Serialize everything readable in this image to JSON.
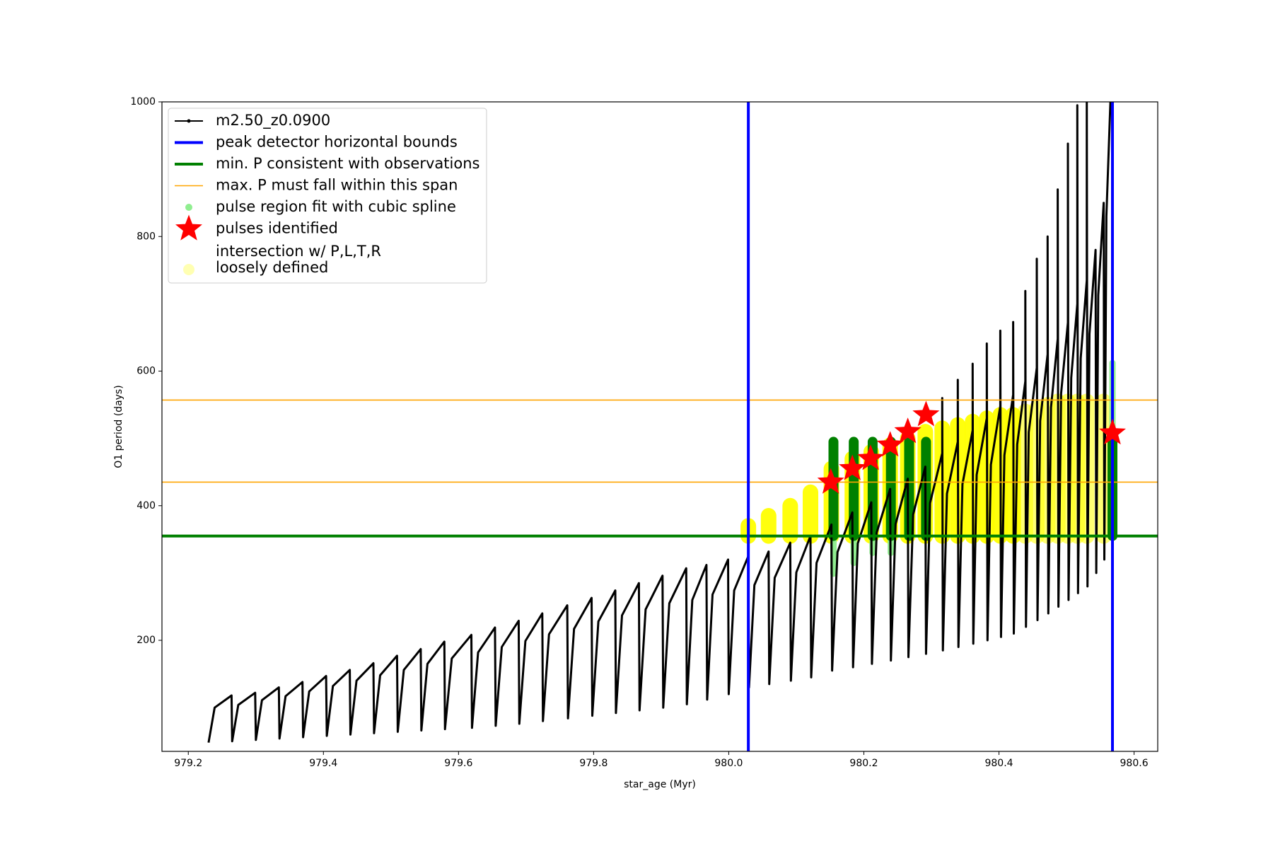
{
  "chart_data": {
    "type": "line",
    "xlabel": "star_age (Myr)",
    "ylabel": "O1 period (days)",
    "xlim": [
      979.161,
      980.635
    ],
    "ylim": [
      35,
      1000
    ],
    "xticks": [
      979.2,
      979.4,
      979.6,
      979.8,
      {
        "value": 980,
        "label": "980.0"
      },
      980.2,
      980.4,
      980.6
    ],
    "yticks": [
      200,
      400,
      600,
      800,
      1000
    ],
    "legend": "upper left",
    "series": [
      {
        "name": "m2.50_z0.0900",
        "type": "line",
        "color": "#000000",
        "x": [
          979.23,
          979.239,
          979.264,
          979.265,
          979.274,
          979.299,
          979.3,
          979.309,
          979.334,
          979.335,
          979.344,
          979.369,
          979.37,
          979.379,
          979.404,
          979.405,
          979.414,
          979.439,
          979.44,
          979.449,
          979.474,
          979.475,
          979.484,
          979.509,
          979.51,
          979.519,
          979.544,
          979.545,
          979.554,
          979.579,
          979.58,
          979.59,
          979.619,
          979.62,
          979.629,
          979.654,
          979.655,
          979.664,
          979.689,
          979.69,
          979.699,
          979.724,
          979.725,
          979.734,
          979.761,
          979.762,
          979.771,
          979.797,
          979.798,
          979.807,
          979.832,
          979.833,
          979.842,
          979.867,
          979.868,
          979.877,
          979.902,
          979.903,
          979.912,
          979.937,
          979.938,
          979.946,
          979.967,
          979.968,
          979.976,
          979.999,
          980.0,
          980.008,
          980.029,
          980.03,
          980.038,
          980.059,
          980.06,
          980.068,
          980.091,
          980.092,
          980.1,
          980.121,
          980.122,
          980.13,
          980.152,
          980.153,
          980.161,
          980.183,
          980.184,
          980.191,
          980.211,
          980.212,
          980.219,
          980.239,
          980.24,
          980.247,
          980.265,
          980.266,
          980.273,
          980.291,
          980.292,
          980.298,
          980.316,
          980.316,
          980.317,
          980.323,
          980.339,
          980.339,
          980.34,
          980.346,
          980.361,
          980.361,
          980.362,
          980.367,
          980.382,
          980.382,
          980.383,
          980.388,
          980.402,
          980.402,
          980.403,
          980.408,
          980.421,
          980.421,
          980.422,
          980.427,
          980.439,
          980.439,
          980.44,
          980.444,
          980.456,
          980.456,
          980.457,
          980.461,
          980.472,
          980.472,
          980.473,
          980.477,
          980.487,
          980.487,
          980.488,
          980.492,
          980.502,
          980.502,
          980.503,
          980.507,
          980.516,
          980.516,
          980.517,
          980.521,
          980.53,
          980.53,
          980.531,
          980.534,
          980.543,
          980.544,
          980.547,
          980.555,
          980.556,
          980.559,
          980.565
        ],
        "y": [
          48,
          100,
          118,
          50,
          104,
          122,
          52,
          111,
          130,
          54,
          117,
          138,
          56,
          124,
          147,
          58,
          132,
          156,
          60,
          140,
          166,
          62,
          148,
          177,
          64,
          156,
          187,
          66,
          165,
          198,
          68,
          173,
          208,
          70,
          182,
          219,
          73,
          190,
          229,
          76,
          199,
          240,
          80,
          209,
          252,
          84,
          217,
          263,
          88,
          228,
          274,
          92,
          237,
          285,
          96,
          246,
          296,
          100,
          255,
          307,
          105,
          260,
          312,
          112,
          268,
          320,
          120,
          274,
          325,
          130,
          282,
          332,
          135,
          293,
          345,
          140,
          301,
          355,
          145,
          315,
          372,
          155,
          331,
          390,
          160,
          344,
          405,
          165,
          360,
          425,
          170,
          373,
          440,
          175,
          387,
          458,
          180,
          404,
          478,
          560,
          185,
          418,
          495,
          587,
          190,
          432,
          512,
          611,
          195,
          446,
          530,
          641,
          200,
          461,
          548,
          660,
          205,
          475,
          565,
          673,
          210,
          491,
          585,
          719,
          220,
          509,
          605,
          767,
          230,
          526,
          625,
          800,
          240,
          546,
          648,
          870,
          250,
          567,
          672,
          938,
          260,
          590,
          700,
          995,
          270,
          619,
          735,
          1000,
          280,
          655,
          780,
          300,
          713,
          850,
          320,
          830,
          1000
        ]
      },
      {
        "name": "peak detector horizontal bounds",
        "type": "vline",
        "color": "#0000ff",
        "x": [
          980.029,
          980.568
        ]
      },
      {
        "name": "min. P consistent with observations",
        "type": "hline",
        "color": "#008000",
        "y": [
          355
        ]
      },
      {
        "name": "max. P must fall within this span",
        "type": "hline",
        "color": "#ffa500",
        "y": [
          435,
          557
        ]
      },
      {
        "name": "pulse region fit with cubic spline",
        "type": "range",
        "color": "#90ee90",
        "x": [
          980.155,
          980.185,
          980.213,
          980.24,
          980.568
        ],
        "low": [
          299,
          315,
          330,
          330,
          355
        ],
        "high": [
          355,
          355,
          355,
          355,
          612
        ]
      },
      {
        "name": "pulses identified",
        "type": "star",
        "color": "#ff0000",
        "x": [
          980.151,
          980.183,
          980.21,
          980.239,
          980.265,
          980.292,
          980.568
        ],
        "y": [
          435,
          455,
          470,
          490,
          510,
          535,
          508
        ]
      },
      {
        "name": [
          "intersection w/ P,L,T,R",
          "loosely defined"
        ],
        "type": "blob",
        "color": "#ffff00",
        "x": [
          980.029,
          980.059,
          980.091,
          980.121,
          980.152,
          980.183,
          980.211,
          980.239,
          980.265,
          980.291,
          980.316,
          980.339,
          980.361,
          980.382,
          980.402,
          980.421,
          980.439,
          980.456,
          980.472,
          980.487,
          980.502,
          980.516,
          980.53,
          980.555
        ],
        "low": [
          355,
          355,
          355,
          355,
          355,
          355,
          355,
          355,
          355,
          355,
          355,
          355,
          355,
          355,
          355,
          355,
          355,
          355,
          355,
          355,
          355,
          355,
          355,
          355
        ],
        "high": [
          370,
          385,
          400,
          420,
          455,
          470,
          480,
          490,
          500,
          510,
          515,
          520,
          525,
          530,
          535,
          535,
          540,
          545,
          550,
          555,
          555,
          555,
          555,
          555
        ]
      },
      {
        "type": "range",
        "color": "#008000",
        "x": [
          980.155,
          980.185,
          980.213,
          980.24,
          980.267,
          980.292,
          980.568
        ],
        "low": [
          355,
          355,
          355,
          355,
          355,
          355,
          355
        ],
        "high": [
          495,
          495,
          495,
          495,
          495,
          495,
          495
        ]
      }
    ]
  }
}
